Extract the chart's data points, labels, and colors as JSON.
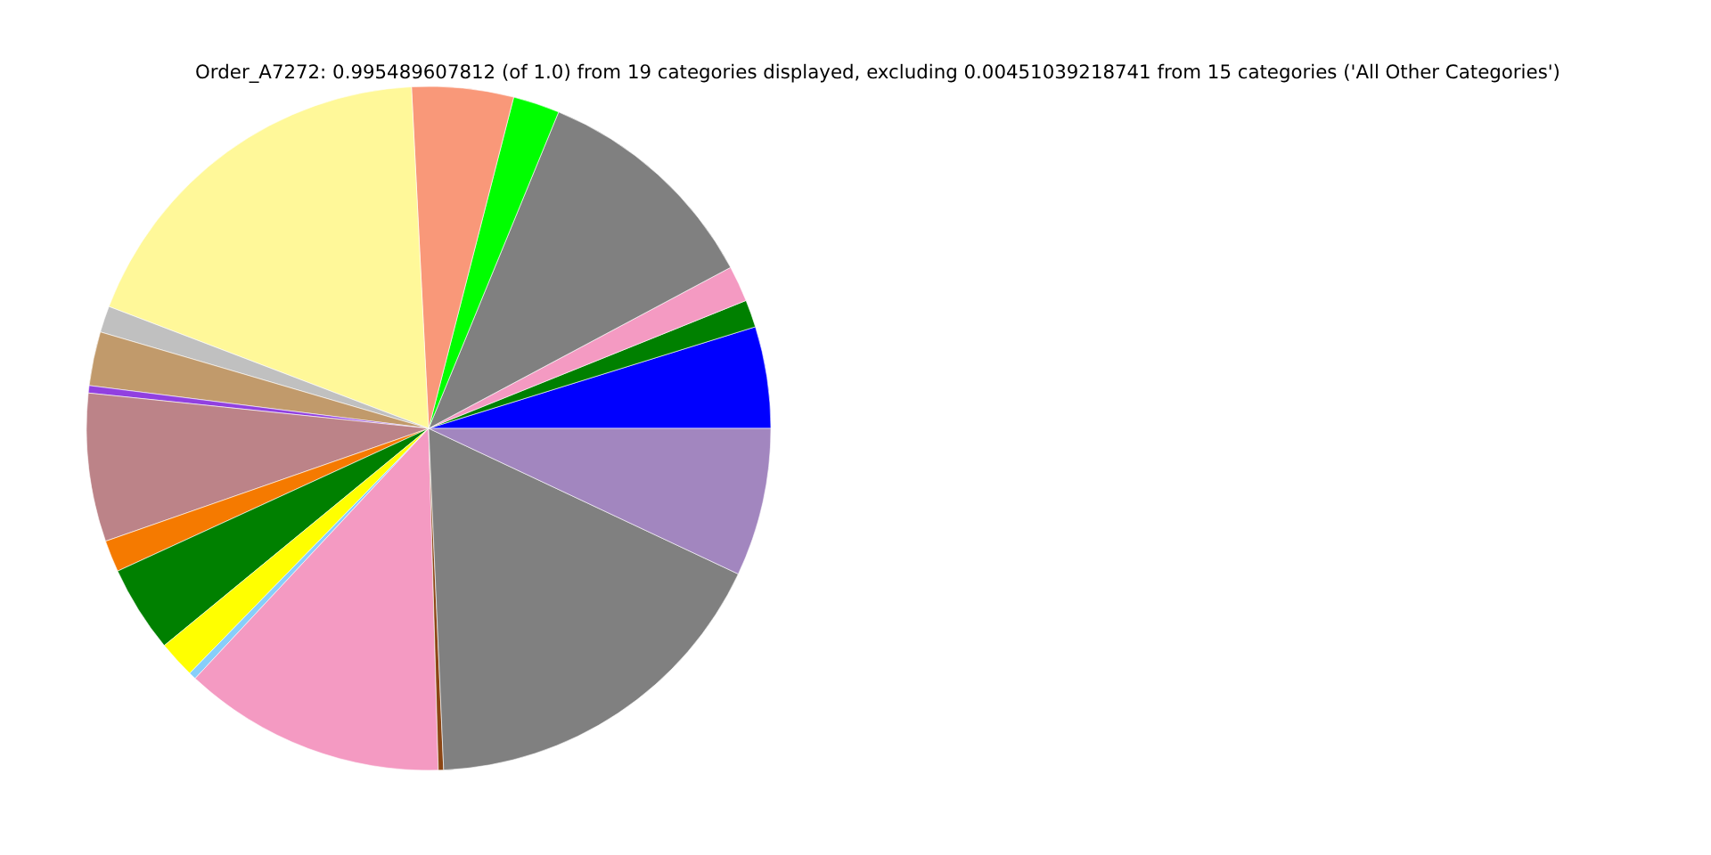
{
  "chart_data": {
    "type": "pie",
    "title": "Order_A7272: 0.995489607812 (of 1.0) from 19 categories displayed, excluding 0.00451039218741 from 15 categories ('All Other Categories')",
    "categories": [
      null,
      null,
      null,
      null,
      null,
      null,
      null,
      null,
      null,
      null,
      null,
      null,
      null,
      null,
      null,
      null,
      null,
      null,
      null
    ],
    "values": [
      4.8,
      1.3,
      1.7,
      11.0,
      2.2,
      4.8,
      18.4,
      1.25,
      2.55,
      0.35,
      7.0,
      1.5,
      4.1,
      1.75,
      0.35,
      12.4,
      0.25,
      17.3,
      7.0
    ],
    "colors": [
      "#0000ff",
      "#008000",
      "#f49ac2",
      "#808080",
      "#00ff00",
      "#f99879",
      "#fff899",
      "#c0c0c0",
      "#c19a6b",
      "#9140e0",
      "#bc8388",
      "#f57a00",
      "#008000",
      "#ffff00",
      "#87cefa",
      "#f49ac2",
      "#8b4513",
      "#808080",
      "#a286bf"
    ]
  }
}
